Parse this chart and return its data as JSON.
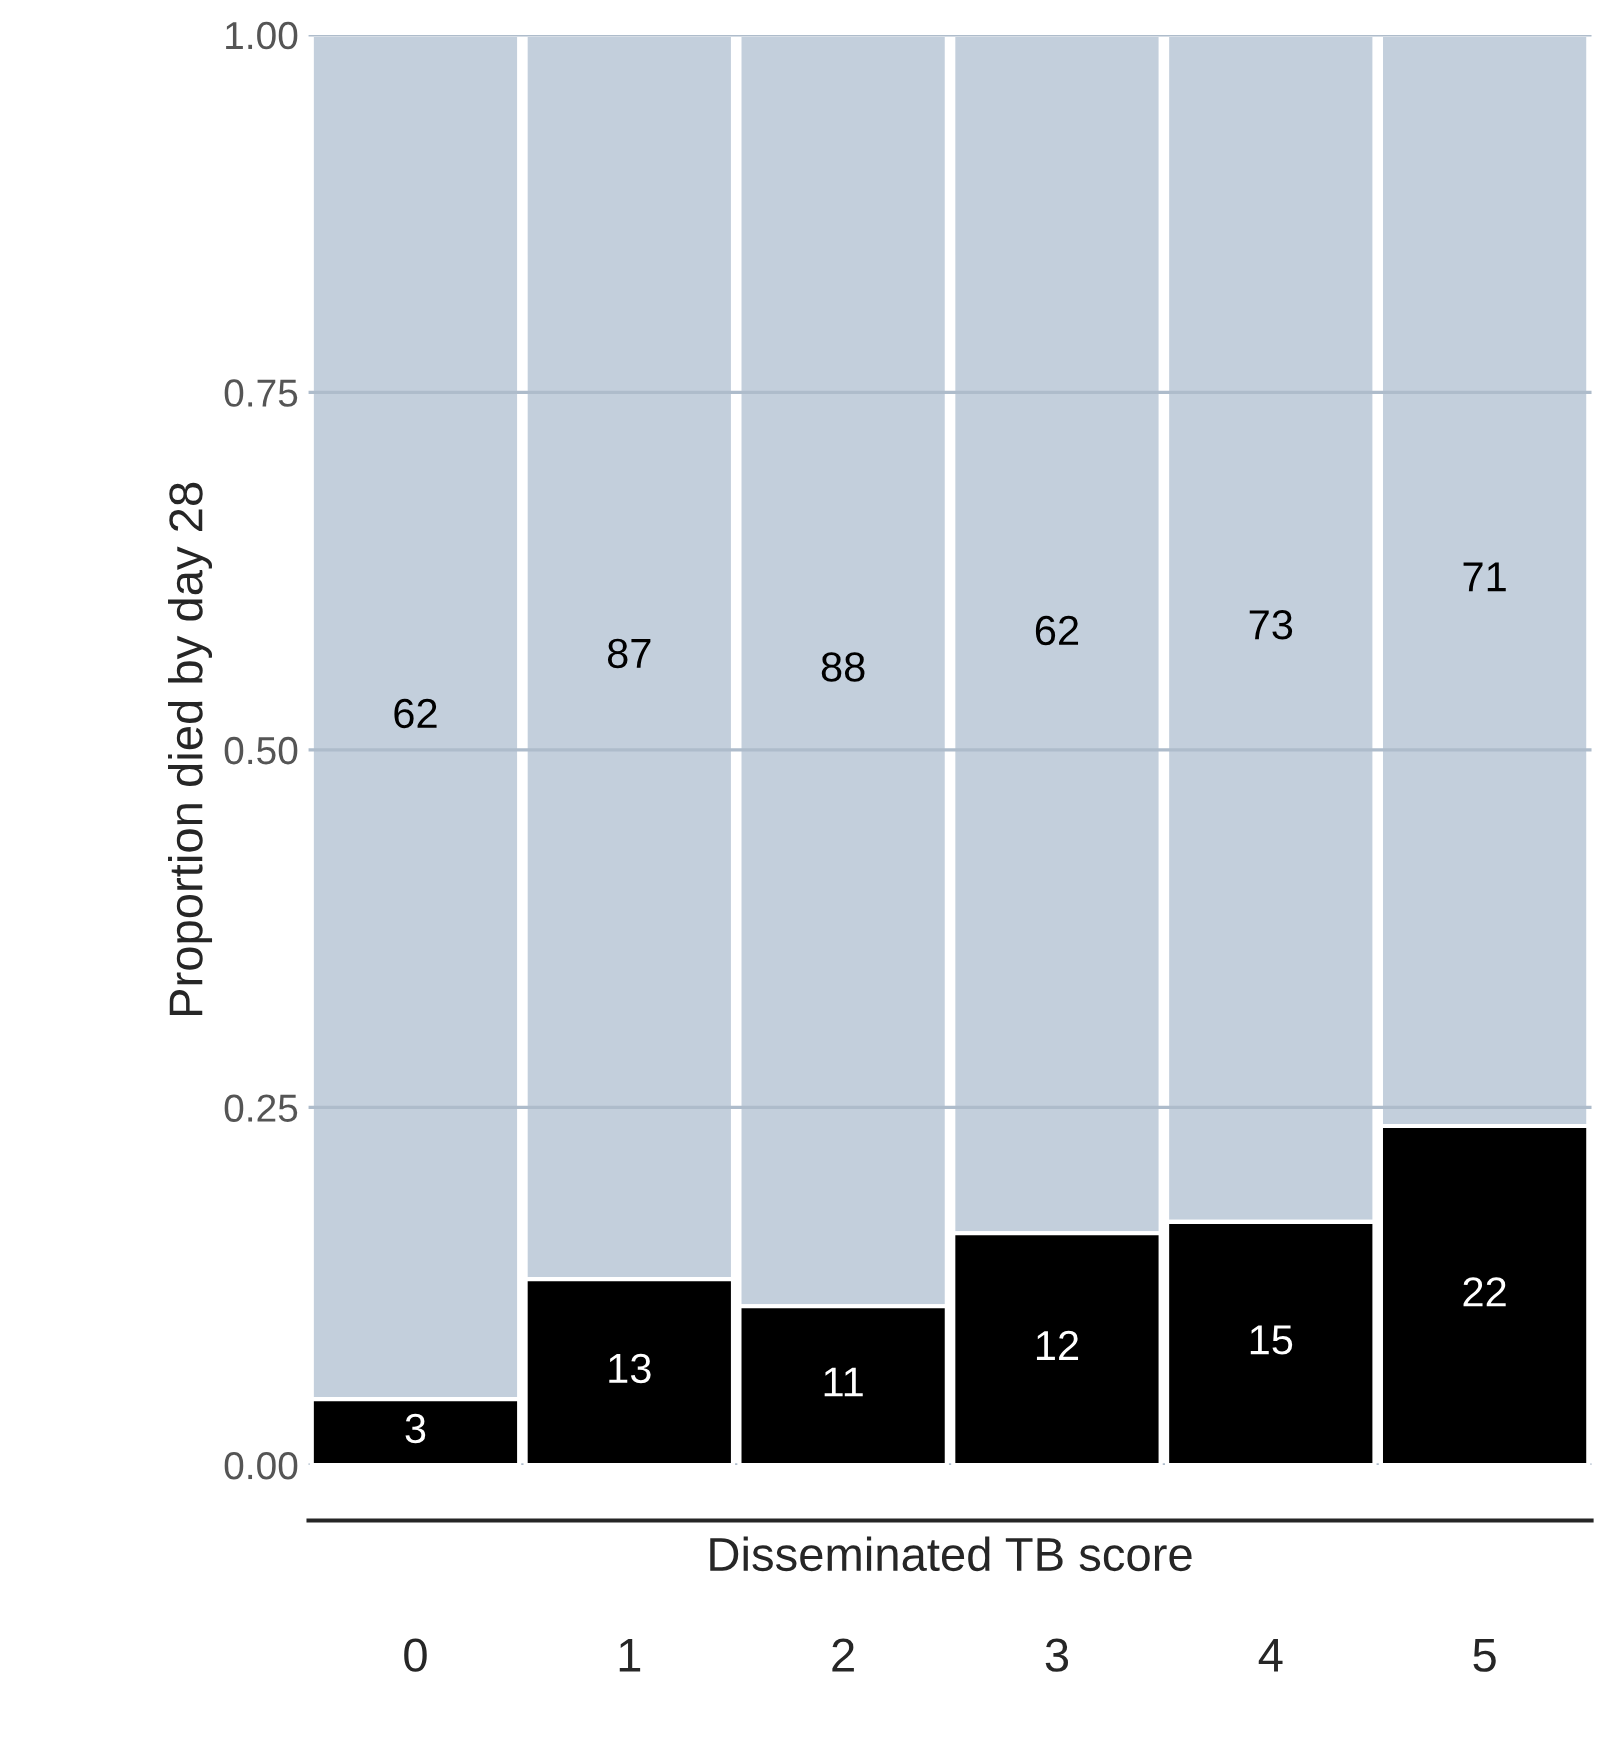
{
  "chart_data": {
    "type": "bar",
    "stacked": true,
    "xlabel": "Disseminated TB score",
    "ylabel": "Proportion died by day 28",
    "categories": [
      "0",
      "1",
      "2",
      "3",
      "4",
      "5"
    ],
    "series": [
      {
        "color": "#000000",
        "values": [
          0.046,
          0.13,
          0.111,
          0.162,
          0.17,
          0.237
        ]
      },
      {
        "color": "#c3cfdc",
        "values": [
          0.954,
          0.87,
          0.889,
          0.838,
          0.83,
          0.763
        ]
      }
    ],
    "annotations": [
      "3",
      "13",
      "11",
      "12",
      "15",
      "22",
      "62",
      "87",
      "88",
      "62",
      "73",
      "71"
    ],
    "ylim": [
      0,
      1
    ],
    "yticks": [
      {
        "value": 0,
        "label": "0.00"
      },
      {
        "value": 0.25,
        "label": "0.25"
      },
      {
        "value": 0.5,
        "label": "0.50"
      },
      {
        "value": 0.75,
        "label": "0.75"
      },
      {
        "value": 1,
        "label": "1.00"
      }
    ],
    "grid": "y",
    "legend": false
  }
}
